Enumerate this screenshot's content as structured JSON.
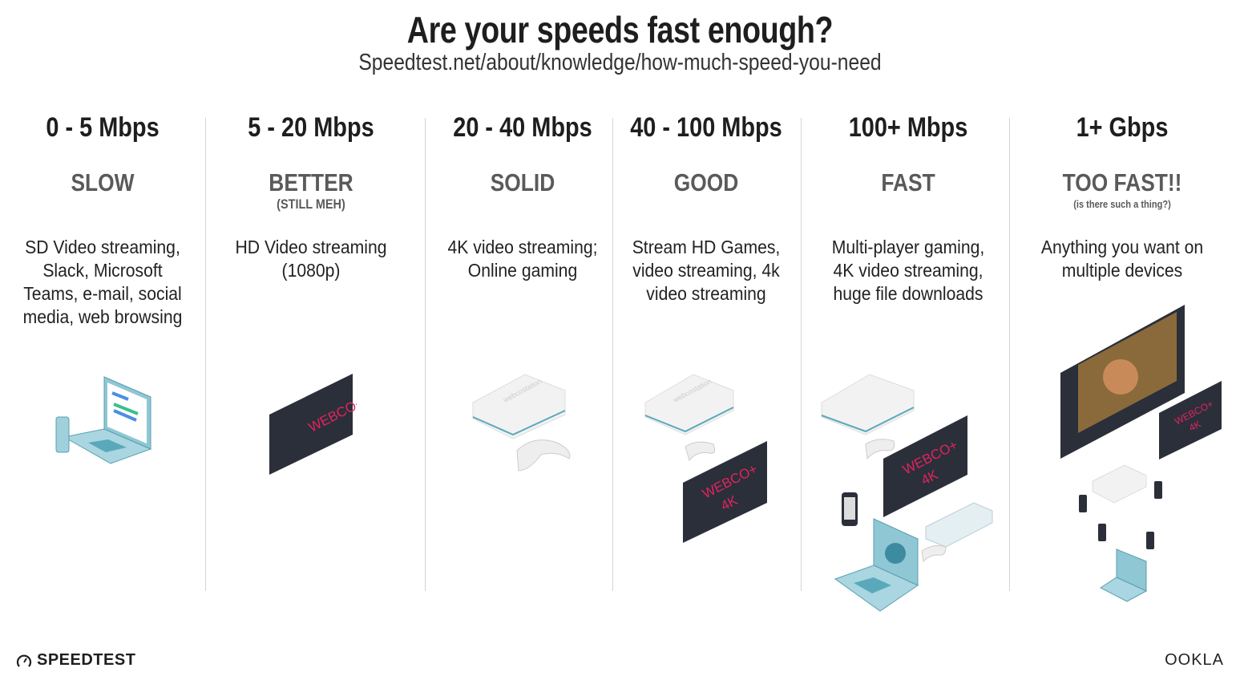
{
  "header": {
    "title": "Are your speeds fast enough?",
    "subtitle": "Speedtest.net/about/knowledge/how-much-speed-you-need"
  },
  "tiers": [
    {
      "speed": "0 - 5 Mbps",
      "rating": "SLOW",
      "note": "",
      "desc": "SD Video streaming, Slack, Microsoft Teams, e-mail, social media, web browsing"
    },
    {
      "speed": "5 - 20 Mbps",
      "rating": "BETTER",
      "note": "(STILL MEH)",
      "desc": "HD Video streaming (1080p)"
    },
    {
      "speed": "20 - 40 Mbps",
      "rating": "SOLID",
      "note": "",
      "desc": "4K video streaming; Online gaming"
    },
    {
      "speed": "40 - 100 Mbps",
      "rating": "GOOD",
      "note": "",
      "desc": "Stream HD Games, video streaming, 4k video streaming"
    },
    {
      "speed": "100+ Mbps",
      "rating": "FAST",
      "note": "",
      "desc": "Multi-player gaming, 4K video streaming, huge file downloads"
    },
    {
      "speed": "1+ Gbps",
      "rating": "TOO FAST!!",
      "note": "(is there such a thing?)",
      "desc": "Anything you want on multiple devices"
    }
  ],
  "tv": {
    "brand": "WEBCO+",
    "brand4k": "4K",
    "brand_color": "#e0245e"
  },
  "console": {
    "label": "webcostation"
  },
  "footer": {
    "left_logo": "SPEEDTEST",
    "right_logo": "OOKLA"
  },
  "colors": {
    "teal": "#6fb7c8",
    "tv_dark": "#2b2f3a"
  }
}
